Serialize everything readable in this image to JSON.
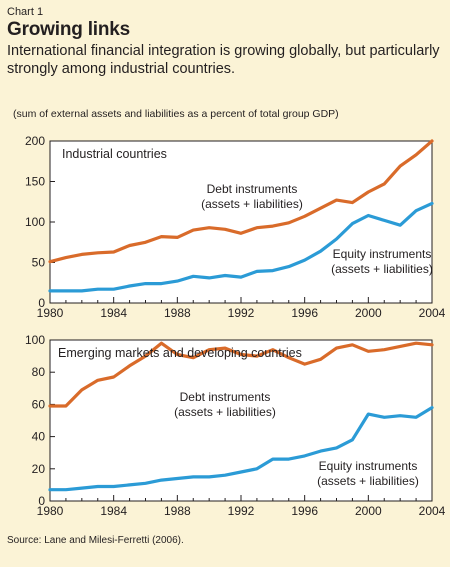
{
  "header": {
    "chart_label": "Chart 1",
    "title": "Growing links",
    "subtitle": "International financial integration is growing globally, but particularly strongly among industrial countries.",
    "note": "(sum of external assets and liabilities as a percent of total group GDP)"
  },
  "source": "Source: Lane and Milesi-Ferretti (2006).",
  "colors": {
    "debt": "#d96b2a",
    "equity": "#2b9bd6",
    "panel_bg": "#ffffff",
    "page_bg": "#fbf3d6"
  },
  "chart_data": [
    {
      "type": "line",
      "title": "Industrial countries",
      "xlim": [
        1980,
        2004
      ],
      "ylim": [
        0,
        200
      ],
      "xticks": [
        1980,
        1984,
        1988,
        1992,
        1996,
        2000,
        2004
      ],
      "yticks": [
        0,
        50,
        100,
        150,
        200
      ],
      "x": [
        1980,
        1981,
        1982,
        1983,
        1984,
        1985,
        1986,
        1987,
        1988,
        1989,
        1990,
        1991,
        1992,
        1993,
        1994,
        1995,
        1996,
        1997,
        1998,
        1999,
        2000,
        2001,
        2002,
        2003,
        2004
      ],
      "series": [
        {
          "name": "Debt instruments (assets + liabilities)",
          "label_lines": [
            "Debt instruments",
            "(assets + liabilities)"
          ],
          "color_key": "debt",
          "values": [
            51,
            56,
            60,
            62,
            63,
            71,
            75,
            82,
            81,
            90,
            93,
            91,
            86,
            93,
            95,
            99,
            107,
            117,
            127,
            124,
            137,
            147,
            169,
            183,
            200
          ]
        },
        {
          "name": "Equity instruments (assets + liabilities)",
          "label_lines": [
            "Equity instruments",
            "(assets + liabilities)"
          ],
          "color_key": "equity",
          "values": [
            15,
            15,
            15,
            17,
            17,
            21,
            24,
            24,
            27,
            33,
            31,
            34,
            32,
            39,
            40,
            45,
            53,
            64,
            79,
            98,
            108,
            102,
            96,
            114,
            123
          ]
        }
      ]
    },
    {
      "type": "line",
      "title": "Emerging markets and developing countries",
      "xlim": [
        1980,
        2004
      ],
      "ylim": [
        0,
        100
      ],
      "xticks": [
        1980,
        1984,
        1988,
        1992,
        1996,
        2000,
        2004
      ],
      "yticks": [
        0,
        20,
        40,
        60,
        80,
        100
      ],
      "x": [
        1980,
        1981,
        1982,
        1983,
        1984,
        1985,
        1986,
        1987,
        1988,
        1989,
        1990,
        1991,
        1992,
        1993,
        1994,
        1995,
        1996,
        1997,
        1998,
        1999,
        2000,
        2001,
        2002,
        2003,
        2004
      ],
      "series": [
        {
          "name": "Debt instruments (assets + liabilities)",
          "label_lines": [
            "Debt instruments",
            "(assets + liabilities)"
          ],
          "color_key": "debt",
          "values": [
            59,
            59,
            69,
            75,
            77,
            84,
            90,
            98,
            91,
            89,
            94,
            95,
            91,
            90,
            94,
            89,
            85,
            88,
            95,
            97,
            93,
            94,
            96,
            98,
            97
          ]
        },
        {
          "name": "Equity instruments (assets + liabilities)",
          "label_lines": [
            "Equity instruments",
            "(assets + liabilities)"
          ],
          "color_key": "equity",
          "values": [
            7,
            7,
            8,
            9,
            9,
            10,
            11,
            13,
            14,
            15,
            15,
            16,
            18,
            20,
            26,
            26,
            28,
            31,
            33,
            38,
            54,
            52,
            53,
            52,
            58
          ]
        }
      ]
    }
  ]
}
